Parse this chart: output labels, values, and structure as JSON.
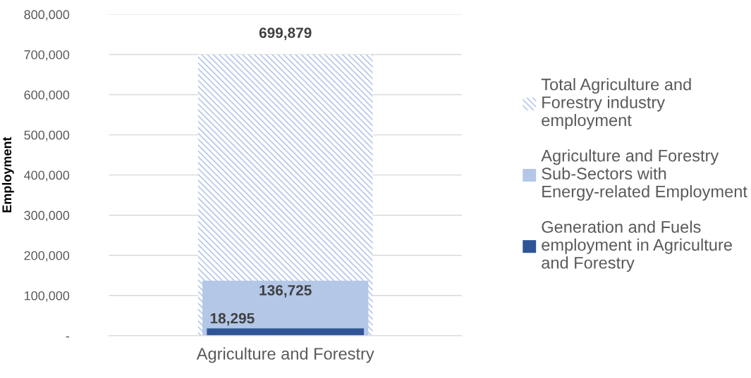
{
  "chart_data": {
    "type": "bar",
    "ylabel": "Employment",
    "categories": [
      "Agriculture and Forestry"
    ],
    "series": [
      {
        "name": "Total Agriculture and Forestry industry employment",
        "color": "#b4c7e7",
        "values": [
          699879
        ],
        "value_labels": [
          "699,879"
        ]
      },
      {
        "name": "Agriculture and Forestry Sub-Sectors with Energy-related Employment",
        "color": "#b4c7e7",
        "values": [
          136725
        ],
        "value_labels": [
          "136,725"
        ]
      },
      {
        "name": "Generation and Fuels employment in Agriculture and Forestry",
        "color": "#2f5597",
        "values": [
          18295
        ],
        "value_labels": [
          "18,295"
        ]
      }
    ],
    "ylim": [
      0,
      800000
    ],
    "yticks": [
      {
        "value": 0,
        "label": "-"
      },
      {
        "value": 100000,
        "label": "100,000"
      },
      {
        "value": 200000,
        "label": "200,000"
      },
      {
        "value": 300000,
        "label": "300,000"
      },
      {
        "value": 400000,
        "label": "400,000"
      },
      {
        "value": 500000,
        "label": "500,000"
      },
      {
        "value": 600000,
        "label": "600,000"
      },
      {
        "value": 700000,
        "label": "700,000"
      },
      {
        "value": 800000,
        "label": "800,000"
      }
    ],
    "grid": "y",
    "legend": "right"
  }
}
